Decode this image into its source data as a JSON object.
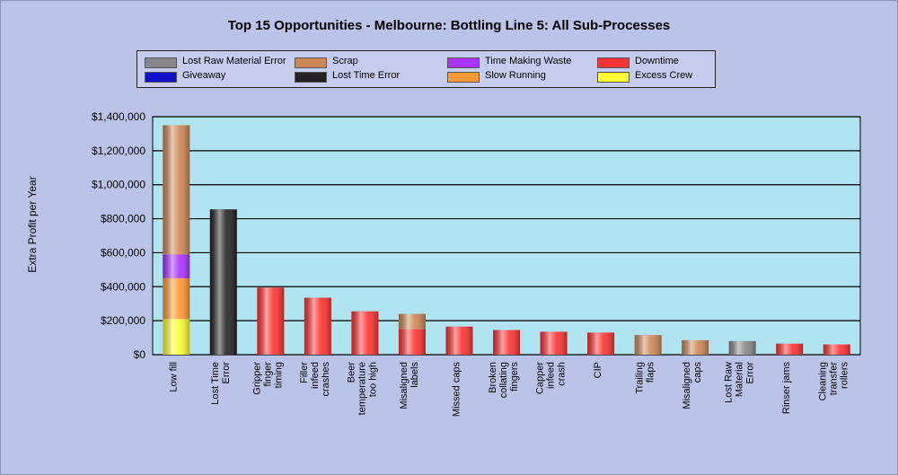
{
  "chart_data": {
    "type": "bar",
    "stacked": true,
    "title": "Top 15 Opportunities - Melbourne: Bottling Line 5: All Sub-Processes",
    "ylabel": "Extra Profit per Year",
    "xlabel": "",
    "ylim": [
      0,
      1400000
    ],
    "yticks": [
      0,
      200000,
      400000,
      600000,
      800000,
      1000000,
      1200000,
      1400000
    ],
    "ytick_labels": [
      "$0",
      "$200,000",
      "$400,000",
      "$600,000",
      "$800,000",
      "$1,000,000",
      "$1,200,000",
      "$1,400,000"
    ],
    "grid": true,
    "legend_position": "top",
    "categories": [
      "Low fill",
      "Lost Time Error",
      "Gripper finger timing",
      "Filler infeed crashes",
      "Beer temperature too high",
      "Misaligned labels",
      "Missed caps",
      "Broken collating fingers",
      "Capper infeed crash",
      "CIP",
      "Trailing flaps",
      "Misaligned caps",
      "Lost Raw Material Error",
      "Rinser jams",
      "Cleaning transfer rollers"
    ],
    "series": [
      {
        "name": "Excess Crew",
        "color": "#ffff33",
        "values": [
          210000,
          0,
          0,
          0,
          0,
          0,
          0,
          0,
          0,
          0,
          0,
          0,
          0,
          0,
          0
        ]
      },
      {
        "name": "Slow Running",
        "color": "#ff9933",
        "values": [
          240000,
          0,
          0,
          0,
          0,
          0,
          0,
          0,
          0,
          0,
          0,
          0,
          0,
          0,
          0
        ]
      },
      {
        "name": "Time Making Waste",
        "color": "#aa33ff",
        "values": [
          140000,
          0,
          0,
          0,
          0,
          0,
          0,
          0,
          0,
          0,
          0,
          0,
          0,
          0,
          0
        ]
      },
      {
        "name": "Downtime",
        "color": "#ff3333",
        "values": [
          0,
          0,
          395000,
          335000,
          255000,
          150000,
          165000,
          145000,
          135000,
          130000,
          0,
          0,
          0,
          65000,
          60000
        ]
      },
      {
        "name": "Lost Time Error",
        "color": "#222222",
        "values": [
          0,
          855000,
          0,
          0,
          0,
          0,
          0,
          0,
          0,
          0,
          0,
          0,
          0,
          0,
          0
        ]
      },
      {
        "name": "Scrap",
        "color": "#cc8855",
        "values": [
          760000,
          0,
          0,
          0,
          0,
          90000,
          0,
          0,
          0,
          0,
          115000,
          85000,
          0,
          0,
          0
        ]
      },
      {
        "name": "Lost Raw Material Error",
        "color": "#888888",
        "values": [
          0,
          0,
          0,
          0,
          0,
          0,
          0,
          0,
          0,
          0,
          0,
          0,
          80000,
          0,
          0
        ]
      },
      {
        "name": "Giveaway",
        "color": "#1111cc",
        "values": [
          0,
          0,
          0,
          0,
          0,
          0,
          0,
          0,
          0,
          0,
          0,
          0,
          0,
          0,
          0
        ]
      }
    ],
    "legend": [
      {
        "name": "Lost Raw Material Error",
        "color": "#888888"
      },
      {
        "name": "Scrap",
        "color": "#cc8855"
      },
      {
        "name": "Time Making Waste",
        "color": "#aa33ff"
      },
      {
        "name": "Downtime",
        "color": "#ff3333"
      },
      {
        "name": "Giveaway",
        "color": "#1111cc"
      },
      {
        "name": "Lost Time Error",
        "color": "#222222"
      },
      {
        "name": "Slow Running",
        "color": "#ff9933"
      },
      {
        "name": "Excess Crew",
        "color": "#ffff33"
      }
    ],
    "plot_background": "#b0e4f0",
    "page_background": "#b9c4e8"
  }
}
